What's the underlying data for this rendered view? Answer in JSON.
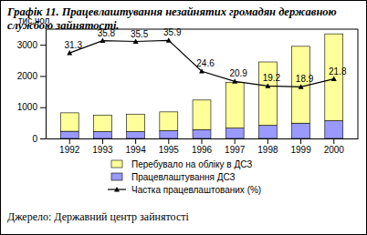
{
  "chart_data": {
    "type": "bar",
    "title": "Графік 11. Працевлаштування незайнятих громадян державною службою зайнятості.",
    "y_label": "тис.чол.",
    "source": "Джерело: Державний центр зайнятості",
    "stacked": true,
    "categories": [
      "1992",
      "1993",
      "1994",
      "1995",
      "1996",
      "1997",
      "1998",
      "1999",
      "2000"
    ],
    "series": [
      {
        "name": "Працевлаштування ДСЗ",
        "type": "bar",
        "color": "#9999ff",
        "values": [
          230,
          220,
          220,
          250,
          280,
          330,
          420,
          490,
          570
        ]
      },
      {
        "name": "Перебувало на обліку в ДСЗ",
        "type": "bar",
        "color": "#ffff99",
        "values": [
          590,
          530,
          560,
          600,
          950,
          1470,
          2030,
          2460,
          2780
        ]
      },
      {
        "name": "Частка працевлаштованих (%)",
        "type": "line",
        "axis": "y2",
        "color": "#000000",
        "marker": "triangle",
        "line_style": "solid",
        "data_labels": true,
        "values": [
          31.3,
          35.8,
          35.5,
          35.9,
          24.6,
          20.9,
          19.2,
          18.9,
          21.8
        ]
      }
    ],
    "ylim": [
      0,
      3500
    ],
    "yticks": [
      0,
      1000,
      2000,
      3000
    ],
    "y2lim": [
      0,
      40
    ],
    "grid": false,
    "legend": "bottom"
  }
}
